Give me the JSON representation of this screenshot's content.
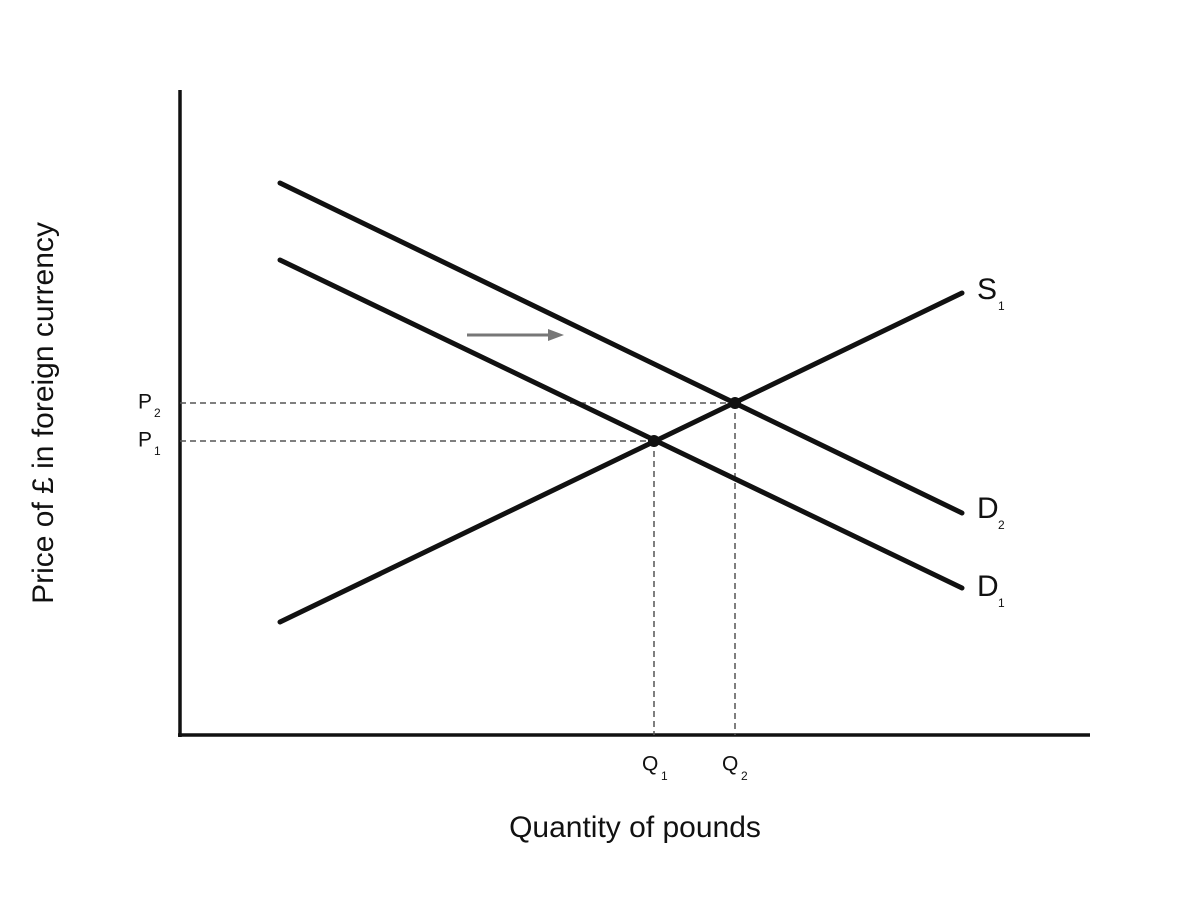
{
  "axes": {
    "y_label": "Price of £ in foreign currency",
    "x_label": "Quantity of pounds"
  },
  "curves": [
    {
      "letter": "S",
      "subscript": "1"
    },
    {
      "letter": "D",
      "subscript": "2"
    },
    {
      "letter": "D",
      "subscript": "1"
    }
  ],
  "price_levels": [
    {
      "letter": "P",
      "subscript": "2"
    },
    {
      "letter": "P",
      "subscript": "1"
    }
  ],
  "quantity_levels": [
    {
      "letter": "Q",
      "subscript": "1"
    },
    {
      "letter": "Q",
      "subscript": "2"
    }
  ]
}
